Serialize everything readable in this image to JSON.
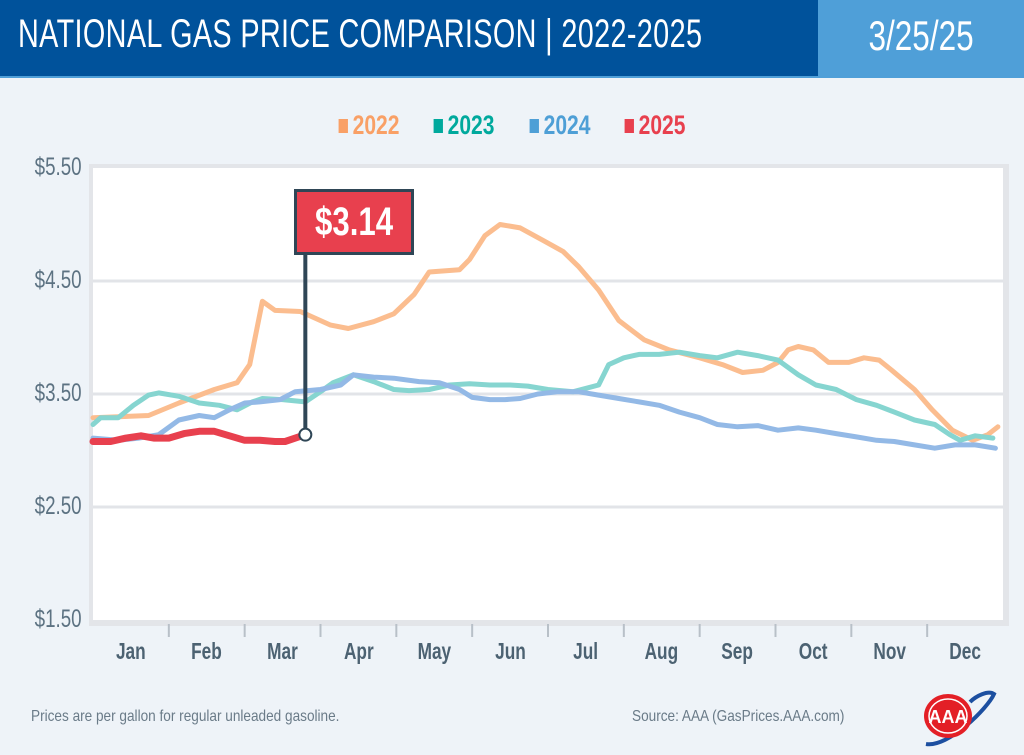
{
  "header": {
    "title": "NATIONAL GAS PRICE COMPARISON | 2022-2025",
    "date": "3/25/25"
  },
  "colors": {
    "header_bg": "#00529b",
    "date_bg": "#4f9fd8",
    "page_bg": "#eef3f8"
  },
  "footer": {
    "note": "Prices are per gallon for regular unleaded gasoline.",
    "source": "Source: AAA (GasPrices.AAA.com)"
  },
  "logo": {
    "text": "AAA"
  },
  "callout": {
    "label": "$3.14"
  },
  "chart_data": {
    "type": "line",
    "title": "NATIONAL GAS PRICE COMPARISON | 2022-2025",
    "xlabel": "",
    "ylabel": "",
    "x_ticks": [
      "Jan",
      "Feb",
      "Mar",
      "Apr",
      "May",
      "Jun",
      "Jul",
      "Aug",
      "Sep",
      "Oct",
      "Nov",
      "Dec"
    ],
    "y_ticks": [
      "$5.50",
      "$4.50",
      "$3.50",
      "$2.50",
      "$1.50"
    ],
    "ylim": [
      1.5,
      5.5
    ],
    "grid": true,
    "legend_position": "top-center",
    "annotation": {
      "series": "2025",
      "date": "03-25",
      "value": 3.14,
      "label": "$3.14"
    },
    "series": [
      {
        "name": "2022",
        "color": "#f9a066",
        "line_color": "#fbbd8f",
        "points": [
          [
            "01-01",
            3.29
          ],
          [
            "01-23",
            3.31
          ],
          [
            "02-05",
            3.42
          ],
          [
            "02-19",
            3.54
          ],
          [
            "02-28",
            3.6
          ],
          [
            "03-03",
            3.76
          ],
          [
            "03-08",
            4.32
          ],
          [
            "03-13",
            4.24
          ],
          [
            "03-23",
            4.23
          ],
          [
            "04-05",
            4.11
          ],
          [
            "04-12",
            4.08
          ],
          [
            "04-22",
            4.14
          ],
          [
            "04-30",
            4.21
          ],
          [
            "05-08",
            4.38
          ],
          [
            "05-14",
            4.58
          ],
          [
            "05-26",
            4.6
          ],
          [
            "05-30",
            4.69
          ],
          [
            "06-06",
            4.9
          ],
          [
            "06-12",
            5.0
          ],
          [
            "06-20",
            4.97
          ],
          [
            "06-29",
            4.86
          ],
          [
            "07-07",
            4.76
          ],
          [
            "07-13",
            4.63
          ],
          [
            "07-21",
            4.42
          ],
          [
            "07-29",
            4.15
          ],
          [
            "08-09",
            3.98
          ],
          [
            "08-19",
            3.89
          ],
          [
            "08-31",
            3.82
          ],
          [
            "09-10",
            3.76
          ],
          [
            "09-18",
            3.69
          ],
          [
            "09-26",
            3.71
          ],
          [
            "10-02",
            3.78
          ],
          [
            "10-06",
            3.89
          ],
          [
            "10-10",
            3.92
          ],
          [
            "10-16",
            3.89
          ],
          [
            "10-22",
            3.78
          ],
          [
            "10-30",
            3.78
          ],
          [
            "11-06",
            3.82
          ],
          [
            "11-12",
            3.8
          ],
          [
            "11-17",
            3.71
          ],
          [
            "11-26",
            3.54
          ],
          [
            "12-03",
            3.36
          ],
          [
            "12-11",
            3.18
          ],
          [
            "12-19",
            3.09
          ],
          [
            "12-25",
            3.14
          ],
          [
            "12-29",
            3.21
          ]
        ]
      },
      {
        "name": "2023",
        "color": "#00a99d",
        "line_color": "#86d5d0",
        "points": [
          [
            "01-01",
            3.23
          ],
          [
            "01-04",
            3.29
          ],
          [
            "01-11",
            3.29
          ],
          [
            "01-17",
            3.4
          ],
          [
            "01-23",
            3.49
          ],
          [
            "01-27",
            3.51
          ],
          [
            "02-05",
            3.48
          ],
          [
            "02-13",
            3.42
          ],
          [
            "02-21",
            3.4
          ],
          [
            "02-28",
            3.36
          ],
          [
            "03-04",
            3.43
          ],
          [
            "03-08",
            3.46
          ],
          [
            "03-16",
            3.45
          ],
          [
            "03-25",
            3.43
          ],
          [
            "04-01",
            3.52
          ],
          [
            "04-06",
            3.6
          ],
          [
            "04-14",
            3.67
          ],
          [
            "04-22",
            3.61
          ],
          [
            "04-30",
            3.54
          ],
          [
            "05-06",
            3.53
          ],
          [
            "05-14",
            3.54
          ],
          [
            "05-22",
            3.58
          ],
          [
            "05-30",
            3.59
          ],
          [
            "06-08",
            3.58
          ],
          [
            "06-16",
            3.58
          ],
          [
            "06-23",
            3.57
          ],
          [
            "07-01",
            3.54
          ],
          [
            "07-11",
            3.52
          ],
          [
            "07-21",
            3.58
          ],
          [
            "07-25",
            3.76
          ],
          [
            "08-01",
            3.82
          ],
          [
            "08-07",
            3.85
          ],
          [
            "08-15",
            3.85
          ],
          [
            "08-23",
            3.87
          ],
          [
            "08-31",
            3.84
          ],
          [
            "09-08",
            3.82
          ],
          [
            "09-16",
            3.87
          ],
          [
            "09-24",
            3.84
          ],
          [
            "10-02",
            3.8
          ],
          [
            "10-10",
            3.67
          ],
          [
            "10-17",
            3.58
          ],
          [
            "10-25",
            3.54
          ],
          [
            "11-03",
            3.45
          ],
          [
            "11-11",
            3.4
          ],
          [
            "11-18",
            3.34
          ],
          [
            "11-26",
            3.27
          ],
          [
            "12-04",
            3.23
          ],
          [
            "12-10",
            3.14
          ],
          [
            "12-14",
            3.09
          ],
          [
            "12-20",
            3.13
          ],
          [
            "12-27",
            3.11
          ]
        ]
      },
      {
        "name": "2024",
        "color": "#4e9fd6",
        "line_color": "#93b9e6",
        "points": [
          [
            "01-01",
            3.11
          ],
          [
            "01-11",
            3.09
          ],
          [
            "01-19",
            3.11
          ],
          [
            "01-27",
            3.14
          ],
          [
            "02-05",
            3.27
          ],
          [
            "02-13",
            3.31
          ],
          [
            "02-19",
            3.29
          ],
          [
            "02-25",
            3.36
          ],
          [
            "03-01",
            3.42
          ],
          [
            "03-07",
            3.43
          ],
          [
            "03-15",
            3.45
          ],
          [
            "03-21",
            3.52
          ],
          [
            "04-01",
            3.54
          ],
          [
            "04-09",
            3.58
          ],
          [
            "04-14",
            3.67
          ],
          [
            "04-22",
            3.65
          ],
          [
            "04-30",
            3.64
          ],
          [
            "05-10",
            3.61
          ],
          [
            "05-18",
            3.6
          ],
          [
            "05-26",
            3.54
          ],
          [
            "06-01",
            3.47
          ],
          [
            "06-08",
            3.45
          ],
          [
            "06-14",
            3.45
          ],
          [
            "06-20",
            3.46
          ],
          [
            "06-27",
            3.5
          ],
          [
            "07-05",
            3.52
          ],
          [
            "07-13",
            3.52
          ],
          [
            "07-21",
            3.49
          ],
          [
            "07-29",
            3.46
          ],
          [
            "08-07",
            3.43
          ],
          [
            "08-15",
            3.4
          ],
          [
            "08-23",
            3.34
          ],
          [
            "08-31",
            3.29
          ],
          [
            "09-08",
            3.23
          ],
          [
            "09-16",
            3.21
          ],
          [
            "09-24",
            3.22
          ],
          [
            "10-02",
            3.18
          ],
          [
            "10-10",
            3.2
          ],
          [
            "10-17",
            3.18
          ],
          [
            "10-25",
            3.15
          ],
          [
            "11-03",
            3.12
          ],
          [
            "11-11",
            3.09
          ],
          [
            "11-18",
            3.08
          ],
          [
            "11-26",
            3.05
          ],
          [
            "12-04",
            3.02
          ],
          [
            "12-12",
            3.05
          ],
          [
            "12-20",
            3.05
          ],
          [
            "12-28",
            3.02
          ]
        ]
      },
      {
        "name": "2025",
        "color": "#e8404e",
        "line_color": "#e8404e",
        "points": [
          [
            "01-01",
            3.08
          ],
          [
            "01-08",
            3.08
          ],
          [
            "01-14",
            3.11
          ],
          [
            "01-20",
            3.13
          ],
          [
            "01-25",
            3.11
          ],
          [
            "02-01",
            3.11
          ],
          [
            "02-07",
            3.15
          ],
          [
            "02-13",
            3.17
          ],
          [
            "02-19",
            3.17
          ],
          [
            "02-25",
            3.13
          ],
          [
            "03-01",
            3.09
          ],
          [
            "03-07",
            3.09
          ],
          [
            "03-13",
            3.08
          ],
          [
            "03-17",
            3.08
          ],
          [
            "03-25",
            3.14
          ]
        ]
      }
    ]
  }
}
